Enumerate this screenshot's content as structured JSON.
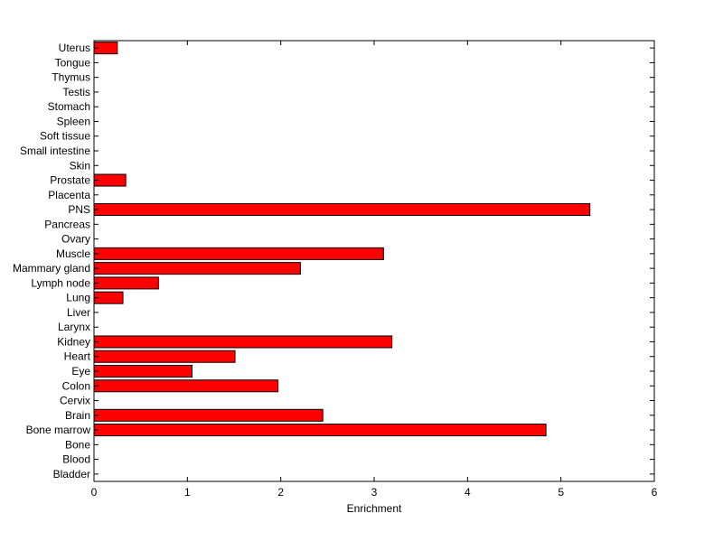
{
  "chart_data": {
    "type": "bar",
    "orientation": "horizontal",
    "title": "",
    "xlabel": "Enrichment",
    "ylabel": "",
    "xlim": [
      0,
      6
    ],
    "xticks": [
      "0",
      "1",
      "2",
      "3",
      "4",
      "5",
      "6"
    ],
    "grid": false,
    "legend": "none",
    "bar_color": "#ff0000",
    "edge_color": "#000000",
    "categories": [
      "Bladder",
      "Blood",
      "Bone",
      "Bone marrow",
      "Brain",
      "Cervix",
      "Colon",
      "Eye",
      "Heart",
      "Kidney",
      "Larynx",
      "Liver",
      "Lung",
      "Lymph node",
      "Mammary gland",
      "Muscle",
      "Ovary",
      "Pancreas",
      "PNS",
      "Placenta",
      "Prostate",
      "Skin",
      "Small intestine",
      "Soft tissue",
      "Spleen",
      "Stomach",
      "Testis",
      "Thymus",
      "Tongue",
      "Uterus"
    ],
    "values": [
      0,
      0,
      0,
      4.84,
      2.45,
      0,
      1.97,
      1.05,
      1.51,
      3.19,
      0,
      0,
      0.31,
      0.69,
      2.21,
      3.1,
      0,
      0,
      5.31,
      0,
      0.34,
      0,
      0,
      0,
      0,
      0,
      0,
      0,
      0,
      0.25
    ]
  }
}
